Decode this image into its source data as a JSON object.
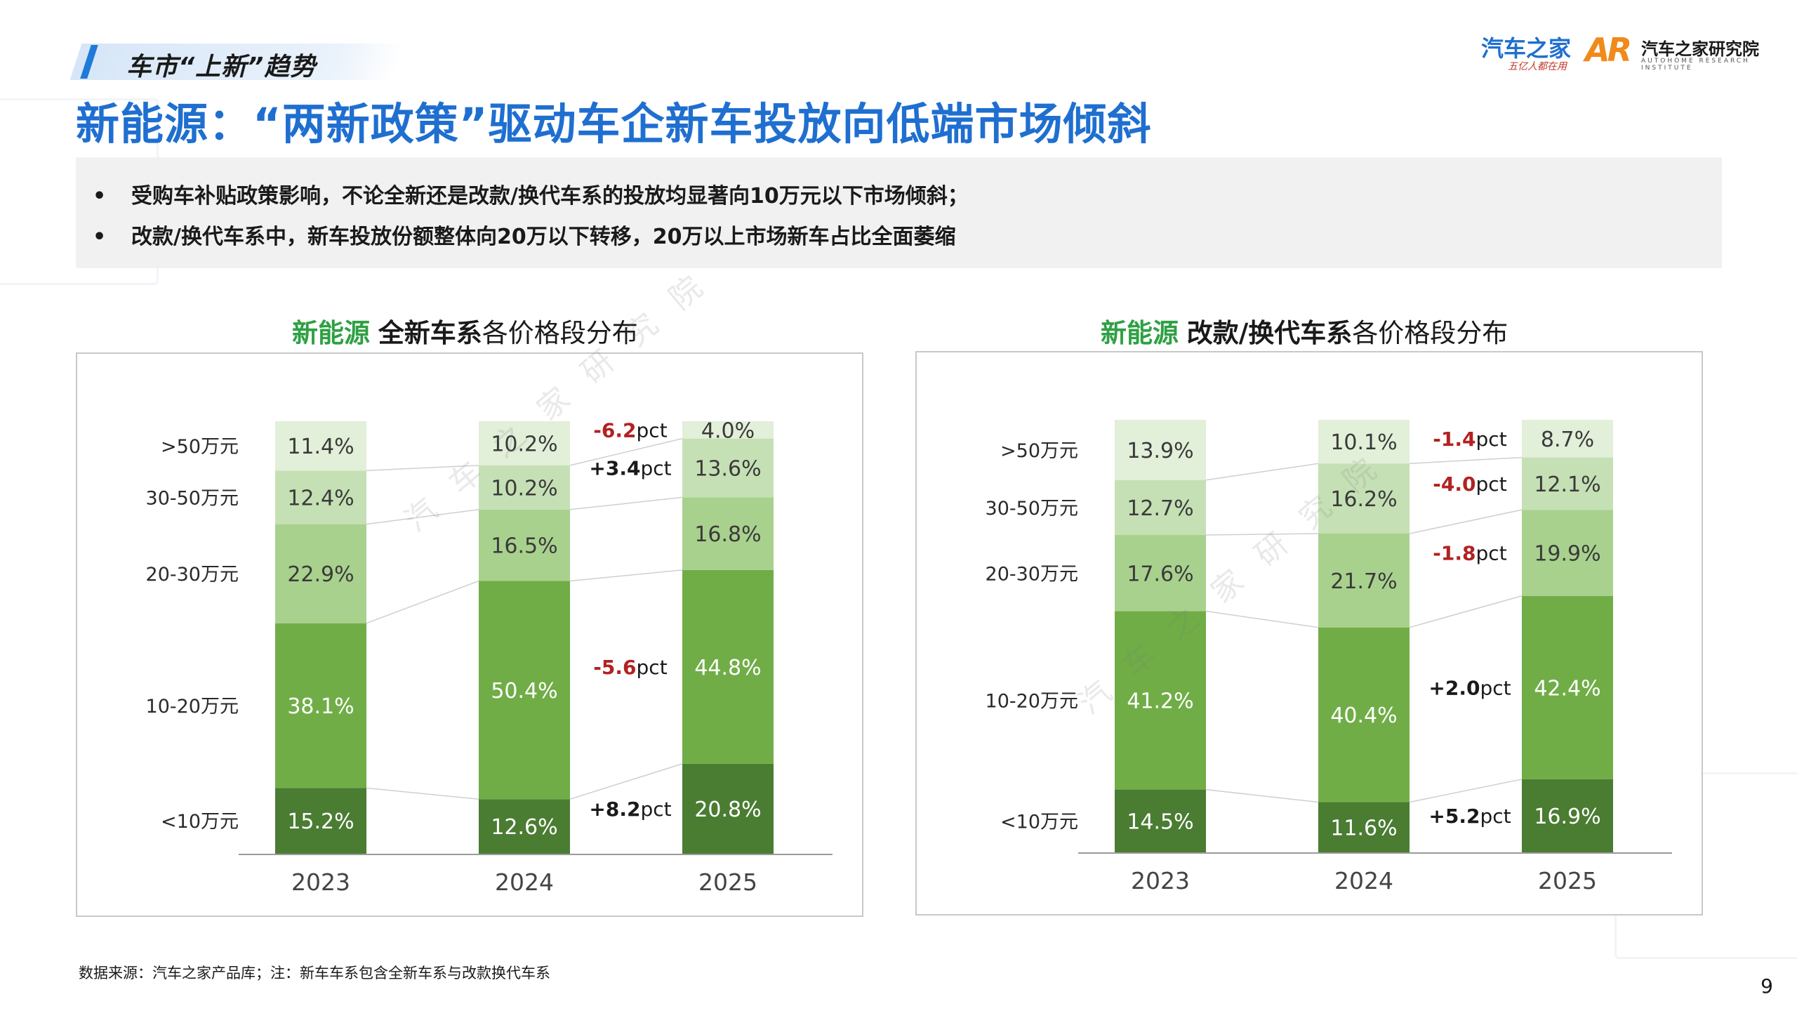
{
  "header": {
    "section_title": "车市“上新”趋势",
    "main_title": "新能源：“两新政策”驱动车企新车投放向低端市场倾斜"
  },
  "logos": {
    "autohome": "汽车之家",
    "autohome_slogan": "五亿人都在用",
    "research": "汽车之家研究院",
    "research_sub": "AUTOHOME RESEARCH INSTITUTE",
    "ar_mark": "AR"
  },
  "bullets": [
    "受购车补贴政策影响，不论全新还是改款/换代车系的投放均显著向10万元以下市场倾斜；",
    "改款/换代车系中，新车投放份额整体向20万以下转移，20万以上市场新车占比全面萎缩"
  ],
  "chart_titles": [
    {
      "prefix": "新能源",
      "bold": "全新车系",
      "rest": "各价格段分布"
    },
    {
      "prefix": "新能源",
      "bold": "改款/换代车系",
      "rest": "各价格段分布"
    }
  ],
  "chart_data": [
    {
      "type": "bar",
      "stacked": true,
      "categories": [
        "2023",
        "2024",
        "2025"
      ],
      "series": [
        {
          "name": "<10万元",
          "values": [
            15.2,
            12.6,
            20.8
          ]
        },
        {
          "name": "10-20万元",
          "values": [
            38.1,
            50.4,
            44.8
          ]
        },
        {
          "name": "20-30万元",
          "values": [
            22.9,
            16.5,
            16.8
          ]
        },
        {
          "name": "30-50万元",
          "values": [
            12.4,
            10.2,
            13.6
          ]
        },
        {
          "name": ">50万元",
          "values": [
            11.4,
            10.2,
            4.0
          ]
        }
      ],
      "labels": [
        "15.2%",
        "38.1%",
        "22.9%",
        "12.4%",
        "11.4%",
        "12.6%",
        "50.4%",
        "16.5%",
        "10.2%",
        "10.2%",
        "20.8%",
        "44.8%",
        "16.8%",
        "13.6%",
        "4.0%"
      ],
      "changes": [
        {
          "sign": "+8.2",
          "unit": "pct",
          "color": "#1a1a1a"
        },
        {
          "sign": "-5.6",
          "unit": "pct",
          "color": "#b22222"
        },
        {
          "sign": "+3.4",
          "unit": "pct",
          "color": "#1a1a1a"
        },
        {
          "sign": "-6.2",
          "unit": "pct",
          "color": "#b22222"
        }
      ],
      "ylim": [
        0,
        100
      ]
    },
    {
      "type": "bar",
      "stacked": true,
      "categories": [
        "2023",
        "2024",
        "2025"
      ],
      "series": [
        {
          "name": "<10万元",
          "values": [
            14.5,
            11.6,
            16.9
          ]
        },
        {
          "name": "10-20万元",
          "values": [
            41.2,
            40.4,
            42.4
          ]
        },
        {
          "name": "20-30万元",
          "values": [
            17.6,
            21.7,
            19.9
          ]
        },
        {
          "name": "30-50万元",
          "values": [
            12.7,
            16.2,
            12.1
          ]
        },
        {
          "name": ">50万元",
          "values": [
            13.9,
            10.1,
            8.7
          ]
        }
      ],
      "labels": [
        "14.5%",
        "41.2%",
        "17.6%",
        "12.7%",
        "13.9%",
        "11.6%",
        "40.4%",
        "21.7%",
        "16.2%",
        "10.1%",
        "16.9%",
        "42.4%",
        "19.9%",
        "12.1%",
        "8.7%"
      ],
      "changes": [
        {
          "sign": "+5.2",
          "unit": "pct",
          "color": "#1a1a1a"
        },
        {
          "sign": "+2.0",
          "unit": "pct",
          "color": "#1a1a1a"
        },
        {
          "sign": "-1.8",
          "unit": "pct",
          "color": "#b22222"
        },
        {
          "sign": "-4.0",
          "unit": "pct",
          "color": "#b22222"
        },
        {
          "sign": "-1.4",
          "unit": "pct",
          "color": "#b22222"
        }
      ],
      "ylim": [
        0,
        100
      ]
    }
  ],
  "colors": [
    "#4a7c32",
    "#70ad47",
    "#a9d18e",
    "#c5e0b4",
    "#e2efd9"
  ],
  "footer": {
    "source": "数据来源：汽车之家产品库；注：新车车系包含全新车系与改款换代车系",
    "page": "9"
  },
  "watermark": "汽车之家研究院"
}
